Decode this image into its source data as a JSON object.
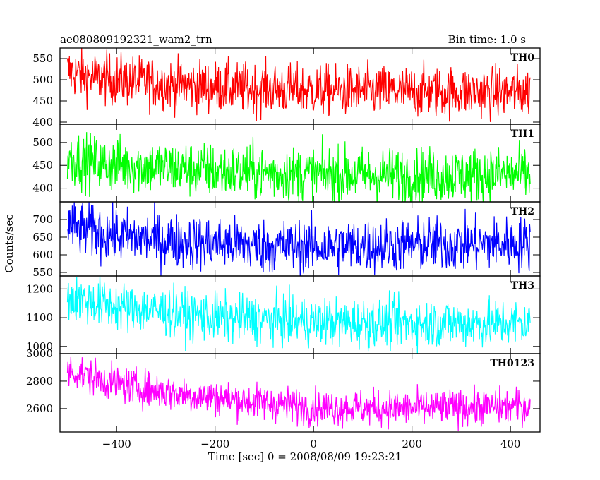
{
  "chart_data": {
    "type": "line",
    "title": "ae080809192321_wam2_trn",
    "bin_time": "Bin time: 1.0 s",
    "xlabel": "Time [sec] 0 = 2008/08/09 19:23:21",
    "ylabel": "Counts/sec",
    "xlim": [
      -515,
      460
    ],
    "x_range": [
      -500,
      440
    ],
    "x_ticks": [
      -400,
      -200,
      0,
      200,
      400
    ],
    "panels": [
      {
        "name": "TH0",
        "color": "#ff0000",
        "ylim": [
          395,
          575
        ],
        "yticks": [
          400,
          450,
          500,
          550
        ],
        "trend": [
          [
            -500,
            520
          ],
          [
            -450,
            505
          ],
          [
            -300,
            490
          ],
          [
            -150,
            480
          ],
          [
            0,
            475
          ],
          [
            200,
            472
          ],
          [
            440,
            470
          ]
        ],
        "noise": 30
      },
      {
        "name": "TH1",
        "color": "#00ff00",
        "ylim": [
          370,
          540
        ],
        "yticks": [
          400,
          450,
          500
        ],
        "trend": [
          [
            -500,
            470
          ],
          [
            -450,
            455
          ],
          [
            -300,
            445
          ],
          [
            -150,
            435
          ],
          [
            0,
            430
          ],
          [
            200,
            428
          ],
          [
            440,
            430
          ]
        ],
        "noise": 30
      },
      {
        "name": "TH2",
        "color": "#0000ff",
        "ylim": [
          540,
          750
        ],
        "yticks": [
          550,
          600,
          650,
          700
        ],
        "trend": [
          [
            -500,
            680
          ],
          [
            -400,
            655
          ],
          [
            -300,
            640
          ],
          [
            -100,
            625
          ],
          [
            0,
            622
          ],
          [
            200,
            628
          ],
          [
            440,
            632
          ]
        ],
        "noise": 38
      },
      {
        "name": "TH3",
        "color": "#00ffff",
        "ylim": [
          975,
          1245
        ],
        "yticks": [
          1000,
          1100,
          1200
        ],
        "trend": [
          [
            -500,
            1170
          ],
          [
            -400,
            1140
          ],
          [
            -200,
            1100
          ],
          [
            0,
            1085
          ],
          [
            200,
            1080
          ],
          [
            440,
            1080
          ]
        ],
        "noise": 42
      },
      {
        "name": "TH0123",
        "color": "#ff00ff",
        "ylim": [
          2430,
          3000
        ],
        "yticks": [
          2600,
          2800,
          3000
        ],
        "trend": [
          [
            -500,
            2880
          ],
          [
            -400,
            2780
          ],
          [
            -300,
            2720
          ],
          [
            -150,
            2660
          ],
          [
            0,
            2610
          ],
          [
            200,
            2600
          ],
          [
            440,
            2620
          ]
        ],
        "noise": 65
      }
    ],
    "grid": false,
    "legend": "none"
  }
}
